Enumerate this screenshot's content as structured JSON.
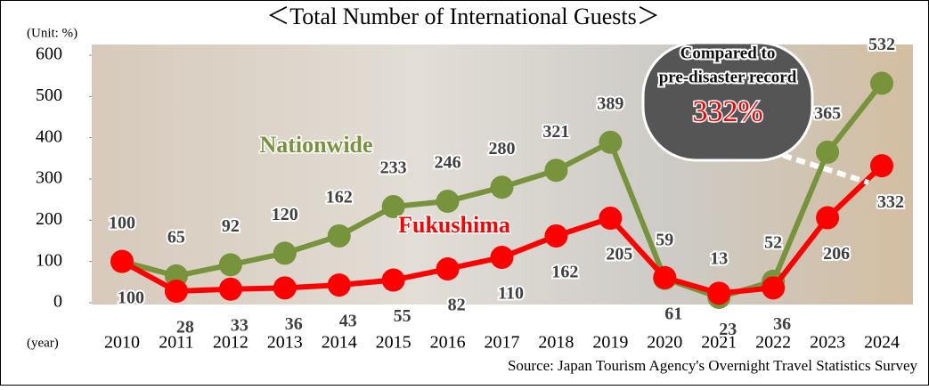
{
  "chart_data": {
    "type": "line",
    "title": "＜Total Number of International Guests＞",
    "y_unit_label": "(Unit: %)",
    "x_unit_label": "(year)",
    "source": "Source: Japan Tourism Agency's Overnight Travel Statistics Survey",
    "annotation": {
      "lines": [
        "Compared to",
        "pre-disaster record"
      ],
      "highlight": "332%"
    },
    "categories": [
      "2010",
      "2011",
      "2012",
      "2013",
      "2014",
      "2015",
      "2016",
      "2017",
      "2018",
      "2019",
      "2020",
      "2021",
      "2022",
      "2023",
      "2024"
    ],
    "series": [
      {
        "name": "Nationwide",
        "color": "#77933c",
        "values": [
          100,
          65,
          92,
          120,
          162,
          233,
          246,
          280,
          321,
          389,
          59,
          13,
          52,
          365,
          532
        ]
      },
      {
        "name": "Fukushima",
        "color": "#ff0000",
        "values": [
          100,
          28,
          33,
          36,
          43,
          55,
          82,
          110,
          162,
          205,
          61,
          23,
          36,
          206,
          332
        ]
      }
    ],
    "ylim": [
      0,
      600
    ],
    "yticks": [
      0,
      100,
      200,
      300,
      400,
      500,
      600
    ]
  }
}
